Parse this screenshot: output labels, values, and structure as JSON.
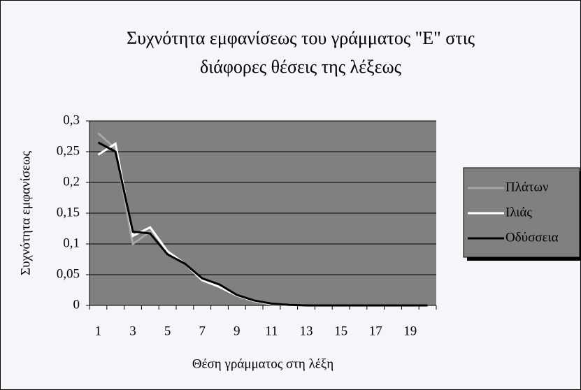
{
  "chart_data": {
    "type": "line",
    "title": [
      "Συχνότητα εμφανίσεως του γράμματος \"Ε\" στις",
      "διάφορες θέσεις της λέξεως"
    ],
    "x_label": "Θέση γράμματος στη λέξη",
    "y_label": "Συχνότητα εμφανίσεως",
    "categories": [
      1,
      null,
      3,
      null,
      5,
      null,
      7,
      null,
      9,
      null,
      11,
      null,
      13,
      null,
      15,
      null,
      17,
      null,
      19,
      null
    ],
    "series": [
      {
        "name": "Πλάτων",
        "color": "#a6a6a6",
        "values": [
          0.28,
          0.255,
          0.1,
          0.12,
          0.085,
          0.068,
          0.042,
          0.032,
          0.017,
          0.008,
          0.003,
          0.001,
          0,
          0,
          0,
          0,
          0,
          0,
          0,
          0
        ]
      },
      {
        "name": "Ιλιάς",
        "color": "#ffffff",
        "values": [
          0.245,
          0.263,
          0.113,
          0.127,
          0.088,
          0.068,
          0.041,
          0.03,
          0.016,
          0.007,
          0.002,
          0.001,
          0,
          0,
          0,
          0,
          0,
          0,
          0,
          0
        ]
      },
      {
        "name": "Οδύσσεια",
        "color": "#000000",
        "values": [
          0.265,
          0.25,
          0.12,
          0.117,
          0.083,
          0.068,
          0.044,
          0.034,
          0.017,
          0.008,
          0.003,
          0.001,
          0,
          0,
          0,
          0,
          0,
          0,
          0,
          0
        ]
      }
    ],
    "ylim": [
      0,
      0.3
    ],
    "yticks": [
      0,
      {
        "value": 0.05,
        "label": "0,05"
      },
      {
        "value": 0.1,
        "label": "0,1"
      },
      {
        "value": 0.15,
        "label": "0,15"
      },
      {
        "value": 0.2,
        "label": "0,2"
      },
      {
        "value": 0.25,
        "label": "0,25"
      },
      {
        "value": 0.3,
        "label": "0,3"
      }
    ],
    "grid": true,
    "legend": "right",
    "plot_color": "#808080"
  }
}
